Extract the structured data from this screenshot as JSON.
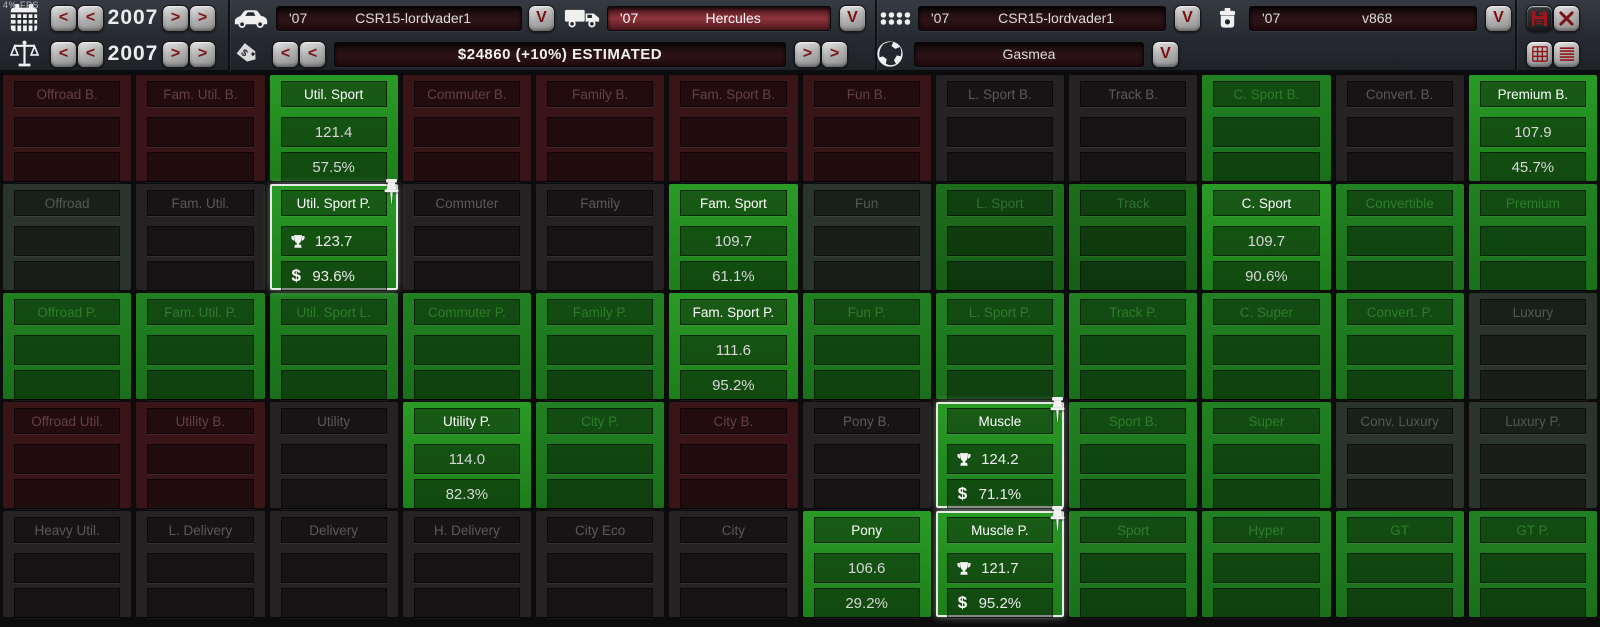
{
  "overlay": {
    "fps": "4% FPS"
  },
  "toolbar": {
    "glyphs": {
      "left": "<",
      "right": ">",
      "down": "V"
    },
    "year_nav": {
      "year": "2007"
    },
    "price_nav": {
      "year": "2007",
      "estimate": "$24860 (+10%) ESTIMATED"
    },
    "selectors": {
      "model": {
        "year": "'07",
        "name": "CSR15-lordvader1"
      },
      "trim": {
        "year": "'07",
        "name": "Hercules"
      },
      "engine_family": {
        "year": "'07",
        "name": "CSR15-lordvader1"
      },
      "engine_variant": {
        "year": "'07",
        "name": "v868"
      },
      "market_region": {
        "name": "Gasmea"
      }
    }
  },
  "icons": {
    "calendar": "calendar-grid",
    "scales": "balance-scales",
    "car": "sedan",
    "truck": "truck",
    "engine": "engine-dots",
    "variant": "canister",
    "tag": "price-tag",
    "globe": "globe",
    "save": "floppy-disk",
    "close": "x-cross",
    "grid_view": "grid",
    "list_view": "list",
    "pin": "pushpin",
    "trophy": "trophy-cup",
    "dollar": "$"
  },
  "colors": {
    "accent_red": "#8f1418",
    "bright_green": "#249122",
    "mid_green": "#1f7e1e",
    "dim_green": "#1b6b19",
    "panel_red": "#3a1518",
    "panel_gray": "#262223",
    "panel_graygreen": "#2b342c",
    "selection_border": "#e3ebe2"
  },
  "grid": {
    "rows": [
      [
        {
          "label": "Offroad B.",
          "variant": "red"
        },
        {
          "label": "Fam. Util. B.",
          "variant": "red"
        },
        {
          "label": "Util. Sport",
          "variant": "bright",
          "score": "121.4",
          "percent": "57.5%"
        },
        {
          "label": "Commuter B.",
          "variant": "red"
        },
        {
          "label": "Family B.",
          "variant": "red"
        },
        {
          "label": "Fam. Sport B.",
          "variant": "red"
        },
        {
          "label": "Fun B.",
          "variant": "red"
        },
        {
          "label": "L. Sport B.",
          "variant": "gray"
        },
        {
          "label": "Track B.",
          "variant": "gray"
        },
        {
          "label": "C. Sport B.",
          "variant": "green"
        },
        {
          "label": "Convert. B.",
          "variant": "gray"
        },
        {
          "label": "Premium B.",
          "variant": "bright",
          "score": "107.9",
          "percent": "45.7%"
        }
      ],
      [
        {
          "label": "Offroad",
          "variant": "graygreen"
        },
        {
          "label": "Fam. Util.",
          "variant": "gray"
        },
        {
          "label": "Util. Sport P.",
          "variant": "selected",
          "pinned": true,
          "score": "123.7",
          "percent": "93.6%"
        },
        {
          "label": "Commuter",
          "variant": "gray"
        },
        {
          "label": "Family",
          "variant": "gray"
        },
        {
          "label": "Fam. Sport",
          "variant": "bright",
          "score": "109.7",
          "percent": "61.1%"
        },
        {
          "label": "Fun",
          "variant": "graygreen"
        },
        {
          "label": "L. Sport",
          "variant": "dimgreen"
        },
        {
          "label": "Track",
          "variant": "dimgreen"
        },
        {
          "label": "C. Sport",
          "variant": "bright",
          "score": "109.7",
          "percent": "90.6%"
        },
        {
          "label": "Convertible",
          "variant": "green"
        },
        {
          "label": "Premium",
          "variant": "green"
        }
      ],
      [
        {
          "label": "Offroad P.",
          "variant": "green"
        },
        {
          "label": "Fam. Util. P.",
          "variant": "green"
        },
        {
          "label": "Util. Sport L.",
          "variant": "green"
        },
        {
          "label": "Commuter P.",
          "variant": "green"
        },
        {
          "label": "Family P.",
          "variant": "green"
        },
        {
          "label": "Fam. Sport P.",
          "variant": "bright",
          "score": "111.6",
          "percent": "95.2%"
        },
        {
          "label": "Fun P.",
          "variant": "green"
        },
        {
          "label": "L. Sport P.",
          "variant": "green"
        },
        {
          "label": "Track P.",
          "variant": "green"
        },
        {
          "label": "C. Super",
          "variant": "green"
        },
        {
          "label": "Convert. P.",
          "variant": "green"
        },
        {
          "label": "Luxury",
          "variant": "graygreen"
        }
      ],
      [
        {
          "label": "Offroad Util.",
          "variant": "red"
        },
        {
          "label": "Utility B.",
          "variant": "red"
        },
        {
          "label": "Utility",
          "variant": "gray"
        },
        {
          "label": "Utility P.",
          "variant": "bright",
          "score": "114.0",
          "percent": "82.3%"
        },
        {
          "label": "City P.",
          "variant": "green"
        },
        {
          "label": "City B.",
          "variant": "red"
        },
        {
          "label": "Pony B.",
          "variant": "gray"
        },
        {
          "label": "Muscle",
          "variant": "selected",
          "pinned": true,
          "score": "124.2",
          "percent": "71.1%"
        },
        {
          "label": "Sport B.",
          "variant": "green"
        },
        {
          "label": "Super",
          "variant": "green"
        },
        {
          "label": "Conv. Luxury",
          "variant": "graygreen"
        },
        {
          "label": "Luxury P.",
          "variant": "graygreen"
        }
      ],
      [
        {
          "label": "Heavy Util.",
          "variant": "gray"
        },
        {
          "label": "L. Delivery",
          "variant": "gray"
        },
        {
          "label": "Delivery",
          "variant": "gray"
        },
        {
          "label": "H. Delivery",
          "variant": "gray"
        },
        {
          "label": "City Eco",
          "variant": "gray"
        },
        {
          "label": "City",
          "variant": "gray"
        },
        {
          "label": "Pony",
          "variant": "bright",
          "score": "106.6",
          "percent": "29.2%"
        },
        {
          "label": "Muscle P.",
          "variant": "selected",
          "pinned": true,
          "score": "121.7",
          "percent": "95.2%"
        },
        {
          "label": "Sport",
          "variant": "green"
        },
        {
          "label": "Hyper",
          "variant": "green"
        },
        {
          "label": "GT",
          "variant": "green"
        },
        {
          "label": "GT P.",
          "variant": "green"
        }
      ]
    ]
  }
}
